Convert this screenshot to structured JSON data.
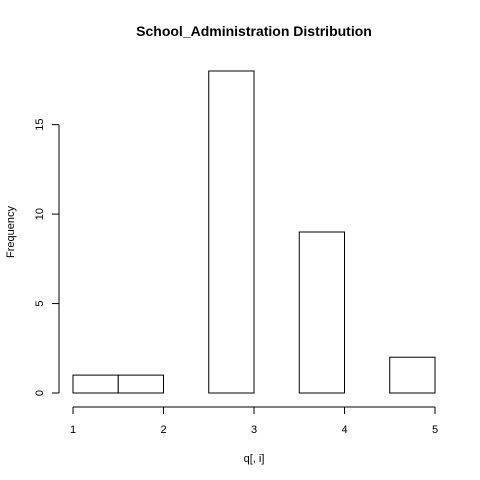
{
  "chart_data": {
    "type": "bar",
    "title": "School_Administration Distribution",
    "xlabel": "q[, i]",
    "ylabel": "Frequency",
    "bins": [
      {
        "x0": 1.0,
        "x1": 1.5,
        "count": 1
      },
      {
        "x0": 1.5,
        "x1": 2.0,
        "count": 1
      },
      {
        "x0": 2.0,
        "x1": 2.5,
        "count": 0
      },
      {
        "x0": 2.5,
        "x1": 3.0,
        "count": 18
      },
      {
        "x0": 3.0,
        "x1": 3.5,
        "count": 0
      },
      {
        "x0": 3.5,
        "x1": 4.0,
        "count": 9
      },
      {
        "x0": 4.0,
        "x1": 4.5,
        "count": 0
      },
      {
        "x0": 4.5,
        "x1": 5.0,
        "count": 2
      }
    ],
    "x_ticks": [
      {
        "value": 1,
        "label": "1"
      },
      {
        "value": 2,
        "label": "2"
      },
      {
        "value": 3,
        "label": "3"
      },
      {
        "value": 4,
        "label": "4"
      },
      {
        "value": 5,
        "label": "5"
      }
    ],
    "y_ticks": [
      {
        "value": 0,
        "label": "0"
      },
      {
        "value": 5,
        "label": "5"
      },
      {
        "value": 10,
        "label": "10"
      },
      {
        "value": 15,
        "label": "15"
      }
    ],
    "xlim": [
      1,
      5
    ],
    "ylim": [
      0,
      18
    ],
    "grid": false,
    "legend": "none"
  }
}
